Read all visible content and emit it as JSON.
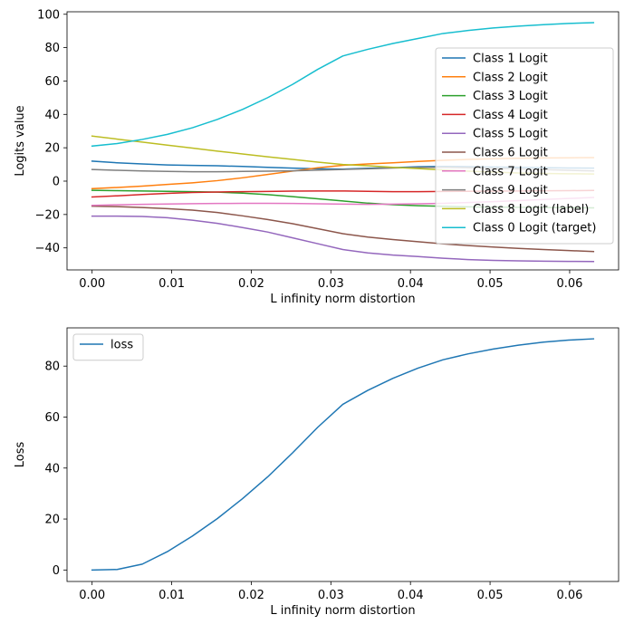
{
  "chart_data": [
    {
      "type": "line",
      "title": "",
      "xlabel": "L infinity norm distortion",
      "ylabel": "Logits value",
      "xlim": [
        -0.00315,
        0.06615
      ],
      "ylim": [
        -53.2,
        101.5
      ],
      "xticks": [
        0.0,
        0.01,
        0.02,
        0.03,
        0.04,
        0.05,
        0.06
      ],
      "xtick_labels": [
        "0.00",
        "0.01",
        "0.02",
        "0.03",
        "0.04",
        "0.05",
        "0.06"
      ],
      "yticks": [
        -40,
        -20,
        0,
        20,
        40,
        60,
        80,
        100
      ],
      "ytick_labels": [
        "−40",
        "−20",
        "0",
        "20",
        "40",
        "60",
        "80",
        "100"
      ],
      "grid": false,
      "legend_position": "center-right",
      "x": [
        0.0,
        0.00315,
        0.0063,
        0.00945,
        0.0126,
        0.01575,
        0.0189,
        0.02205,
        0.0252,
        0.02835,
        0.0315,
        0.03465,
        0.0378,
        0.04095,
        0.0441,
        0.04725,
        0.0504,
        0.05355,
        0.0567,
        0.05985,
        0.063
      ],
      "series": [
        {
          "name": "Class 1 Logit",
          "color": "#1f77b4",
          "values": [
            12.0,
            11.0,
            10.3,
            9.7,
            9.4,
            9.2,
            8.8,
            8.3,
            7.8,
            7.4,
            7.2,
            7.7,
            8.1,
            8.6,
            8.8,
            8.7,
            8.5,
            8.3,
            8.1,
            7.9,
            7.8
          ]
        },
        {
          "name": "Class 2 Logit",
          "color": "#ff7f0e",
          "values": [
            -4.5,
            -3.8,
            -3.0,
            -2.0,
            -1.0,
            0.3,
            2.0,
            4.0,
            6.0,
            8.0,
            9.5,
            10.3,
            11.0,
            11.8,
            12.5,
            13.0,
            13.4,
            13.7,
            13.9,
            14.0,
            14.1
          ]
        },
        {
          "name": "Class 3 Logit",
          "color": "#2ca02c",
          "values": [
            -5.5,
            -5.7,
            -5.9,
            -6.1,
            -6.3,
            -6.6,
            -7.2,
            -8.1,
            -9.3,
            -10.6,
            -11.9,
            -13.2,
            -14.1,
            -14.7,
            -15.1,
            -15.4,
            -15.6,
            -15.7,
            -15.8,
            -15.9,
            -16.0
          ]
        },
        {
          "name": "Class 4 Logit",
          "color": "#d62728",
          "values": [
            -9.5,
            -8.8,
            -8.0,
            -7.3,
            -6.8,
            -6.5,
            -6.3,
            -6.2,
            -6.0,
            -5.9,
            -5.9,
            -6.1,
            -6.3,
            -6.3,
            -6.2,
            -6.1,
            -6.0,
            -5.9,
            -5.8,
            -5.7,
            -5.6
          ]
        },
        {
          "name": "Class 5 Logit",
          "color": "#9467bd",
          "values": [
            -21.0,
            -21.0,
            -21.2,
            -21.9,
            -23.4,
            -25.3,
            -27.8,
            -30.5,
            -34.0,
            -37.5,
            -41.0,
            -43.0,
            -44.3,
            -45.2,
            -46.2,
            -47.0,
            -47.5,
            -47.8,
            -48.0,
            -48.1,
            -48.2
          ]
        },
        {
          "name": "Class 6 Logit",
          "color": "#8c564b",
          "values": [
            -15.0,
            -15.3,
            -15.8,
            -16.5,
            -17.4,
            -18.8,
            -20.8,
            -23.0,
            -25.5,
            -28.5,
            -31.5,
            -33.5,
            -35.0,
            -36.3,
            -37.6,
            -38.6,
            -39.5,
            -40.3,
            -41.0,
            -41.6,
            -42.2
          ]
        },
        {
          "name": "Class 7 Logit",
          "color": "#e377c2",
          "values": [
            -14.5,
            -14.2,
            -13.9,
            -13.7,
            -13.5,
            -13.4,
            -13.3,
            -13.3,
            -13.4,
            -13.6,
            -13.8,
            -13.9,
            -13.8,
            -13.6,
            -13.3,
            -12.8,
            -12.3,
            -11.7,
            -11.0,
            -10.4,
            -9.8
          ]
        },
        {
          "name": "Class 9 Logit",
          "color": "#7f7f7f",
          "values": [
            7.0,
            6.5,
            6.1,
            5.8,
            5.6,
            5.6,
            5.8,
            6.0,
            6.2,
            6.6,
            7.0,
            7.4,
            7.9,
            8.2,
            8.3,
            8.1,
            7.7,
            7.3,
            6.9,
            6.5,
            6.1
          ]
        },
        {
          "name": "Class 8 Logit (label)",
          "color": "#bcbd22",
          "values": [
            27.0,
            25.2,
            23.4,
            21.6,
            19.8,
            18.0,
            16.3,
            14.6,
            13.0,
            11.4,
            10.0,
            9.2,
            8.3,
            7.5,
            6.7,
            6.0,
            5.4,
            4.9,
            4.6,
            4.4,
            4.3
          ]
        },
        {
          "name": "Class 0 Logit (target)",
          "color": "#17becf",
          "values": [
            21.0,
            22.5,
            25.0,
            28.0,
            32.0,
            37.0,
            43.0,
            50.0,
            58.0,
            67.0,
            75.0,
            79.0,
            82.5,
            85.5,
            88.5,
            90.3,
            91.8,
            92.9,
            93.8,
            94.5,
            95.0
          ]
        }
      ]
    },
    {
      "type": "line",
      "title": "",
      "xlabel": "L infinity norm distortion",
      "ylabel": "Loss",
      "xlim": [
        -0.00315,
        0.06615
      ],
      "ylim": [
        -4.5,
        95.0
      ],
      "xticks": [
        0.0,
        0.01,
        0.02,
        0.03,
        0.04,
        0.05,
        0.06
      ],
      "xtick_labels": [
        "0.00",
        "0.01",
        "0.02",
        "0.03",
        "0.04",
        "0.05",
        "0.06"
      ],
      "yticks": [
        0,
        20,
        40,
        60,
        80
      ],
      "ytick_labels": [
        "0",
        "20",
        "40",
        "60",
        "80"
      ],
      "grid": false,
      "legend_position": "upper-left",
      "x": [
        0.0,
        0.00315,
        0.0063,
        0.00945,
        0.0126,
        0.01575,
        0.0189,
        0.02205,
        0.0252,
        0.02835,
        0.0315,
        0.03465,
        0.0378,
        0.04095,
        0.0441,
        0.04725,
        0.0504,
        0.05355,
        0.0567,
        0.05985,
        0.063
      ],
      "series": [
        {
          "name": "loss",
          "color": "#1f77b4",
          "values": [
            0.0,
            0.2,
            2.3,
            7.2,
            13.3,
            20.2,
            28.0,
            36.5,
            46.0,
            56.0,
            65.0,
            70.5,
            75.2,
            79.2,
            82.5,
            84.8,
            86.7,
            88.2,
            89.4,
            90.2,
            90.7
          ]
        }
      ]
    }
  ]
}
